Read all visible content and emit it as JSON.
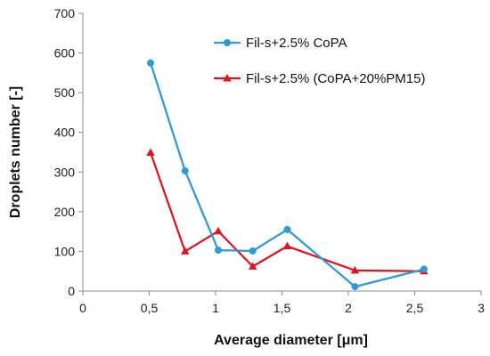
{
  "chart_data": {
    "type": "line",
    "xlabel": "Average diameter [μm]",
    "ylabel": "Droplets number [-]",
    "xlim": [
      0,
      3
    ],
    "ylim": [
      0,
      700
    ],
    "x_ticks": [
      0,
      0.5,
      1,
      1.5,
      2,
      2.5,
      3
    ],
    "x_tick_labels": [
      "0",
      "0,5",
      "1",
      "1,5",
      "2",
      "2,5",
      "3"
    ],
    "y_ticks": [
      0,
      100,
      200,
      300,
      400,
      500,
      600,
      700
    ],
    "y_tick_labels": [
      "0",
      "100",
      "200",
      "300",
      "400",
      "500",
      "600",
      "700"
    ],
    "grid": false,
    "legend_position": "top-right",
    "series": [
      {
        "name": "Fil-s+2.5% CoPA",
        "color": "#2e9ad6",
        "marker": "circle",
        "x": [
          0.51,
          0.77,
          1.02,
          1.28,
          1.54,
          2.05,
          2.57
        ],
        "y": [
          575,
          303,
          103,
          101,
          155,
          11,
          55
        ]
      },
      {
        "name": "Fil-s+2.5% (CoPA+20%PM15)",
        "color": "#e0141e",
        "marker": "triangle",
        "x": [
          0.51,
          0.77,
          1.02,
          1.28,
          1.54,
          2.05,
          2.57
        ],
        "y": [
          349,
          100,
          151,
          62,
          113,
          52,
          50
        ]
      }
    ]
  }
}
